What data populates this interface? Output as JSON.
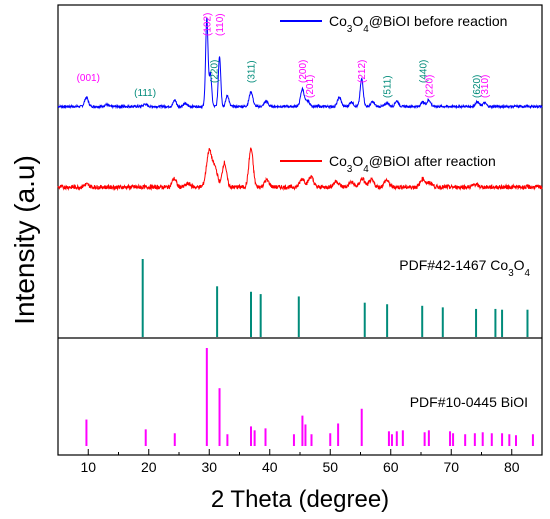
{
  "chart_data": {
    "type": "line",
    "xlabel": "2 Theta (degree)",
    "ylabel": "Intensity (a.u)",
    "xlim": [
      5,
      85
    ],
    "x_ticks": [
      10,
      20,
      30,
      40,
      50,
      60,
      70,
      80
    ],
    "series": [
      {
        "name": "Co3O4@BiOI before reaction",
        "name_parts": [
          "Co",
          "3",
          "O",
          "4",
          "@BiOI before reaction"
        ],
        "color": "#0000ff",
        "baseline": 0.06,
        "noise": 0.012,
        "peaks": [
          {
            "x": 9.7,
            "h": 0.1,
            "w": 0.3
          },
          {
            "x": 13.0,
            "h": 0.02,
            "w": 0.3
          },
          {
            "x": 19.4,
            "h": 0.025,
            "w": 0.3
          },
          {
            "x": 24.3,
            "h": 0.07,
            "w": 0.25
          },
          {
            "x": 26.0,
            "h": 0.03,
            "w": 0.3
          },
          {
            "x": 29.6,
            "h": 0.95,
            "w": 0.2
          },
          {
            "x": 30.2,
            "h": 0.35,
            "w": 0.2
          },
          {
            "x": 31.7,
            "h": 0.55,
            "w": 0.2
          },
          {
            "x": 33.0,
            "h": 0.12,
            "w": 0.25
          },
          {
            "x": 36.9,
            "h": 0.16,
            "w": 0.3
          },
          {
            "x": 39.4,
            "h": 0.06,
            "w": 0.3
          },
          {
            "x": 45.4,
            "h": 0.19,
            "w": 0.3
          },
          {
            "x": 46.3,
            "h": 0.06,
            "w": 0.3
          },
          {
            "x": 51.5,
            "h": 0.1,
            "w": 0.3
          },
          {
            "x": 53.5,
            "h": 0.05,
            "w": 0.3
          },
          {
            "x": 55.2,
            "h": 0.3,
            "w": 0.25
          },
          {
            "x": 57.0,
            "h": 0.05,
            "w": 0.3
          },
          {
            "x": 59.4,
            "h": 0.04,
            "w": 0.3
          },
          {
            "x": 61.0,
            "h": 0.06,
            "w": 0.3
          },
          {
            "x": 65.3,
            "h": 0.05,
            "w": 0.3
          },
          {
            "x": 66.3,
            "h": 0.07,
            "w": 0.3
          },
          {
            "x": 74.3,
            "h": 0.05,
            "w": 0.3
          },
          {
            "x": 75.5,
            "h": 0.04,
            "w": 0.3
          }
        ]
      },
      {
        "name": "Co3O4@BiOI after reaction",
        "name_parts": [
          "Co",
          "3",
          "O",
          "4",
          "@BiOI after reaction"
        ],
        "color": "#ff0000",
        "baseline": 0.07,
        "noise": 0.03,
        "peaks": [
          {
            "x": 9.7,
            "h": 0.04,
            "w": 0.4
          },
          {
            "x": 24.2,
            "h": 0.12,
            "w": 0.35
          },
          {
            "x": 26.5,
            "h": 0.05,
            "w": 0.4
          },
          {
            "x": 30.0,
            "h": 0.52,
            "w": 0.45
          },
          {
            "x": 31.0,
            "h": 0.25,
            "w": 0.4
          },
          {
            "x": 32.5,
            "h": 0.35,
            "w": 0.35
          },
          {
            "x": 36.9,
            "h": 0.55,
            "w": 0.35
          },
          {
            "x": 39.5,
            "h": 0.1,
            "w": 0.4
          },
          {
            "x": 45.4,
            "h": 0.12,
            "w": 0.4
          },
          {
            "x": 46.8,
            "h": 0.15,
            "w": 0.4
          },
          {
            "x": 51.0,
            "h": 0.08,
            "w": 0.45
          },
          {
            "x": 53.5,
            "h": 0.07,
            "w": 0.4
          },
          {
            "x": 55.3,
            "h": 0.12,
            "w": 0.4
          },
          {
            "x": 56.8,
            "h": 0.1,
            "w": 0.4
          },
          {
            "x": 59.3,
            "h": 0.1,
            "w": 0.4
          },
          {
            "x": 65.3,
            "h": 0.12,
            "w": 0.4
          },
          {
            "x": 66.5,
            "h": 0.06,
            "w": 0.4
          },
          {
            "x": 74.0,
            "h": 0.04,
            "w": 0.4
          }
        ]
      }
    ],
    "reference_patterns": [
      {
        "name": "PDF#42-1467 Co3O4",
        "name_parts": [
          "PDF#42-1467 Co",
          "3",
          "O",
          "4"
        ],
        "color": "#008b7a",
        "lines": [
          {
            "x": 19.0,
            "h": 1.0
          },
          {
            "x": 31.3,
            "h": 0.65
          },
          {
            "x": 36.9,
            "h": 0.58
          },
          {
            "x": 38.5,
            "h": 0.55
          },
          {
            "x": 44.8,
            "h": 0.52
          },
          {
            "x": 55.7,
            "h": 0.44
          },
          {
            "x": 59.4,
            "h": 0.42
          },
          {
            "x": 65.2,
            "h": 0.4
          },
          {
            "x": 68.6,
            "h": 0.38
          },
          {
            "x": 74.1,
            "h": 0.36
          },
          {
            "x": 77.3,
            "h": 0.36
          },
          {
            "x": 78.4,
            "h": 0.35
          },
          {
            "x": 82.6,
            "h": 0.35
          }
        ]
      },
      {
        "name": "PDF#10-0445 BiOI",
        "name_parts": [
          "PDF#10-0445 BiOI"
        ],
        "color": "#ff00ff",
        "lines": [
          {
            "x": 9.7,
            "h": 0.27
          },
          {
            "x": 19.5,
            "h": 0.17
          },
          {
            "x": 24.3,
            "h": 0.13
          },
          {
            "x": 29.6,
            "h": 1.0
          },
          {
            "x": 31.7,
            "h": 0.59
          },
          {
            "x": 33.0,
            "h": 0.12
          },
          {
            "x": 36.9,
            "h": 0.2
          },
          {
            "x": 37.5,
            "h": 0.16
          },
          {
            "x": 39.3,
            "h": 0.18
          },
          {
            "x": 44.0,
            "h": 0.12
          },
          {
            "x": 45.4,
            "h": 0.31
          },
          {
            "x": 45.9,
            "h": 0.22
          },
          {
            "x": 46.9,
            "h": 0.12
          },
          {
            "x": 50.0,
            "h": 0.13
          },
          {
            "x": 51.3,
            "h": 0.23
          },
          {
            "x": 55.2,
            "h": 0.38
          },
          {
            "x": 59.7,
            "h": 0.15
          },
          {
            "x": 60.2,
            "h": 0.12
          },
          {
            "x": 61.0,
            "h": 0.15
          },
          {
            "x": 62.0,
            "h": 0.16
          },
          {
            "x": 65.6,
            "h": 0.14
          },
          {
            "x": 66.3,
            "h": 0.16
          },
          {
            "x": 69.8,
            "h": 0.15
          },
          {
            "x": 70.3,
            "h": 0.13
          },
          {
            "x": 72.3,
            "h": 0.12
          },
          {
            "x": 73.9,
            "h": 0.13
          },
          {
            "x": 75.2,
            "h": 0.14
          },
          {
            "x": 76.7,
            "h": 0.13
          },
          {
            "x": 78.4,
            "h": 0.13
          },
          {
            "x": 79.6,
            "h": 0.12
          },
          {
            "x": 80.7,
            "h": 0.11
          },
          {
            "x": 83.5,
            "h": 0.12
          }
        ]
      }
    ],
    "peak_labels": [
      {
        "text": "(001)",
        "x": 10.0,
        "color": "#ff00ff",
        "rotate": false,
        "row": 1
      },
      {
        "text": "(111)",
        "x": 19.4,
        "color": "#008b7a",
        "rotate": false,
        "row": 2
      },
      {
        "text": "(102)",
        "x": 29.6,
        "color": "#ff00ff",
        "rotate": true,
        "row": 0
      },
      {
        "text": "(110)",
        "x": 31.7,
        "color": "#ff00ff",
        "rotate": true,
        "row": 0
      },
      {
        "text": "(220)",
        "x": 30.8,
        "color": "#008b7a",
        "rotate": true,
        "row": 1
      },
      {
        "text": "(311)",
        "x": 36.9,
        "color": "#008b7a",
        "rotate": true,
        "row": 1
      },
      {
        "text": "(200)",
        "x": 45.4,
        "color": "#ff00ff",
        "rotate": true,
        "row": 1
      },
      {
        "text": "(201)",
        "x": 46.6,
        "color": "#ff00ff",
        "rotate": true,
        "row": 2
      },
      {
        "text": "(212)",
        "x": 55.2,
        "color": "#ff00ff",
        "rotate": true,
        "row": 1
      },
      {
        "text": "(511)",
        "x": 59.4,
        "color": "#008b7a",
        "rotate": true,
        "row": 2
      },
      {
        "text": "(440)",
        "x": 65.3,
        "color": "#008b7a",
        "rotate": true,
        "row": 1
      },
      {
        "text": "(220)",
        "x": 66.3,
        "color": "#ff00ff",
        "rotate": true,
        "row": 2
      },
      {
        "text": "(620)",
        "x": 74.2,
        "color": "#008b7a",
        "rotate": true,
        "row": 2
      },
      {
        "text": "(310)",
        "x": 75.5,
        "color": "#ff00ff",
        "rotate": true,
        "row": 2
      }
    ],
    "grid": false,
    "legend_placement": "top-right"
  }
}
